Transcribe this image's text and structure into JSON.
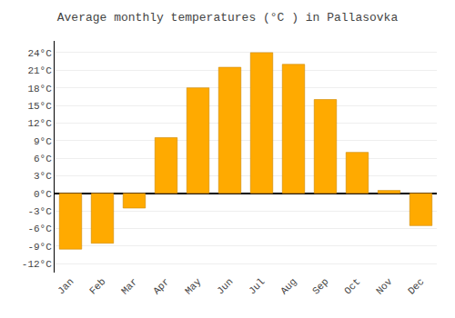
{
  "chart_data": {
    "type": "bar",
    "title": "Average monthly temperatures (°C ) in Pallasovka",
    "categories": [
      "Jan",
      "Feb",
      "Mar",
      "Apr",
      "May",
      "Jun",
      "Jul",
      "Aug",
      "Sep",
      "Oct",
      "Nov",
      "Dec"
    ],
    "values": [
      -9.5,
      -8.5,
      -2.5,
      9.5,
      18.0,
      21.5,
      24.0,
      22.0,
      16.0,
      7.0,
      0.5,
      -5.5
    ],
    "color": "#FFAA00",
    "ylim": [
      -13.5,
      26.0
    ],
    "yticks": [
      {
        "value": -12,
        "label": "-12°C"
      },
      {
        "value": -9,
        "label": "-9°C"
      },
      {
        "value": -6,
        "label": "-6°C"
      },
      {
        "value": -3,
        "label": "-3°C"
      },
      {
        "value": 0,
        "label": "0°C"
      },
      {
        "value": 3,
        "label": "3°C"
      },
      {
        "value": 6,
        "label": "6°C"
      },
      {
        "value": 9,
        "label": "9°C"
      },
      {
        "value": 12,
        "label": "12°C"
      },
      {
        "value": 15,
        "label": "15°C"
      },
      {
        "value": 18,
        "label": "18°C"
      },
      {
        "value": 21,
        "label": "21°C"
      },
      {
        "value": 24,
        "label": "24°C"
      }
    ],
    "grid": true
  }
}
